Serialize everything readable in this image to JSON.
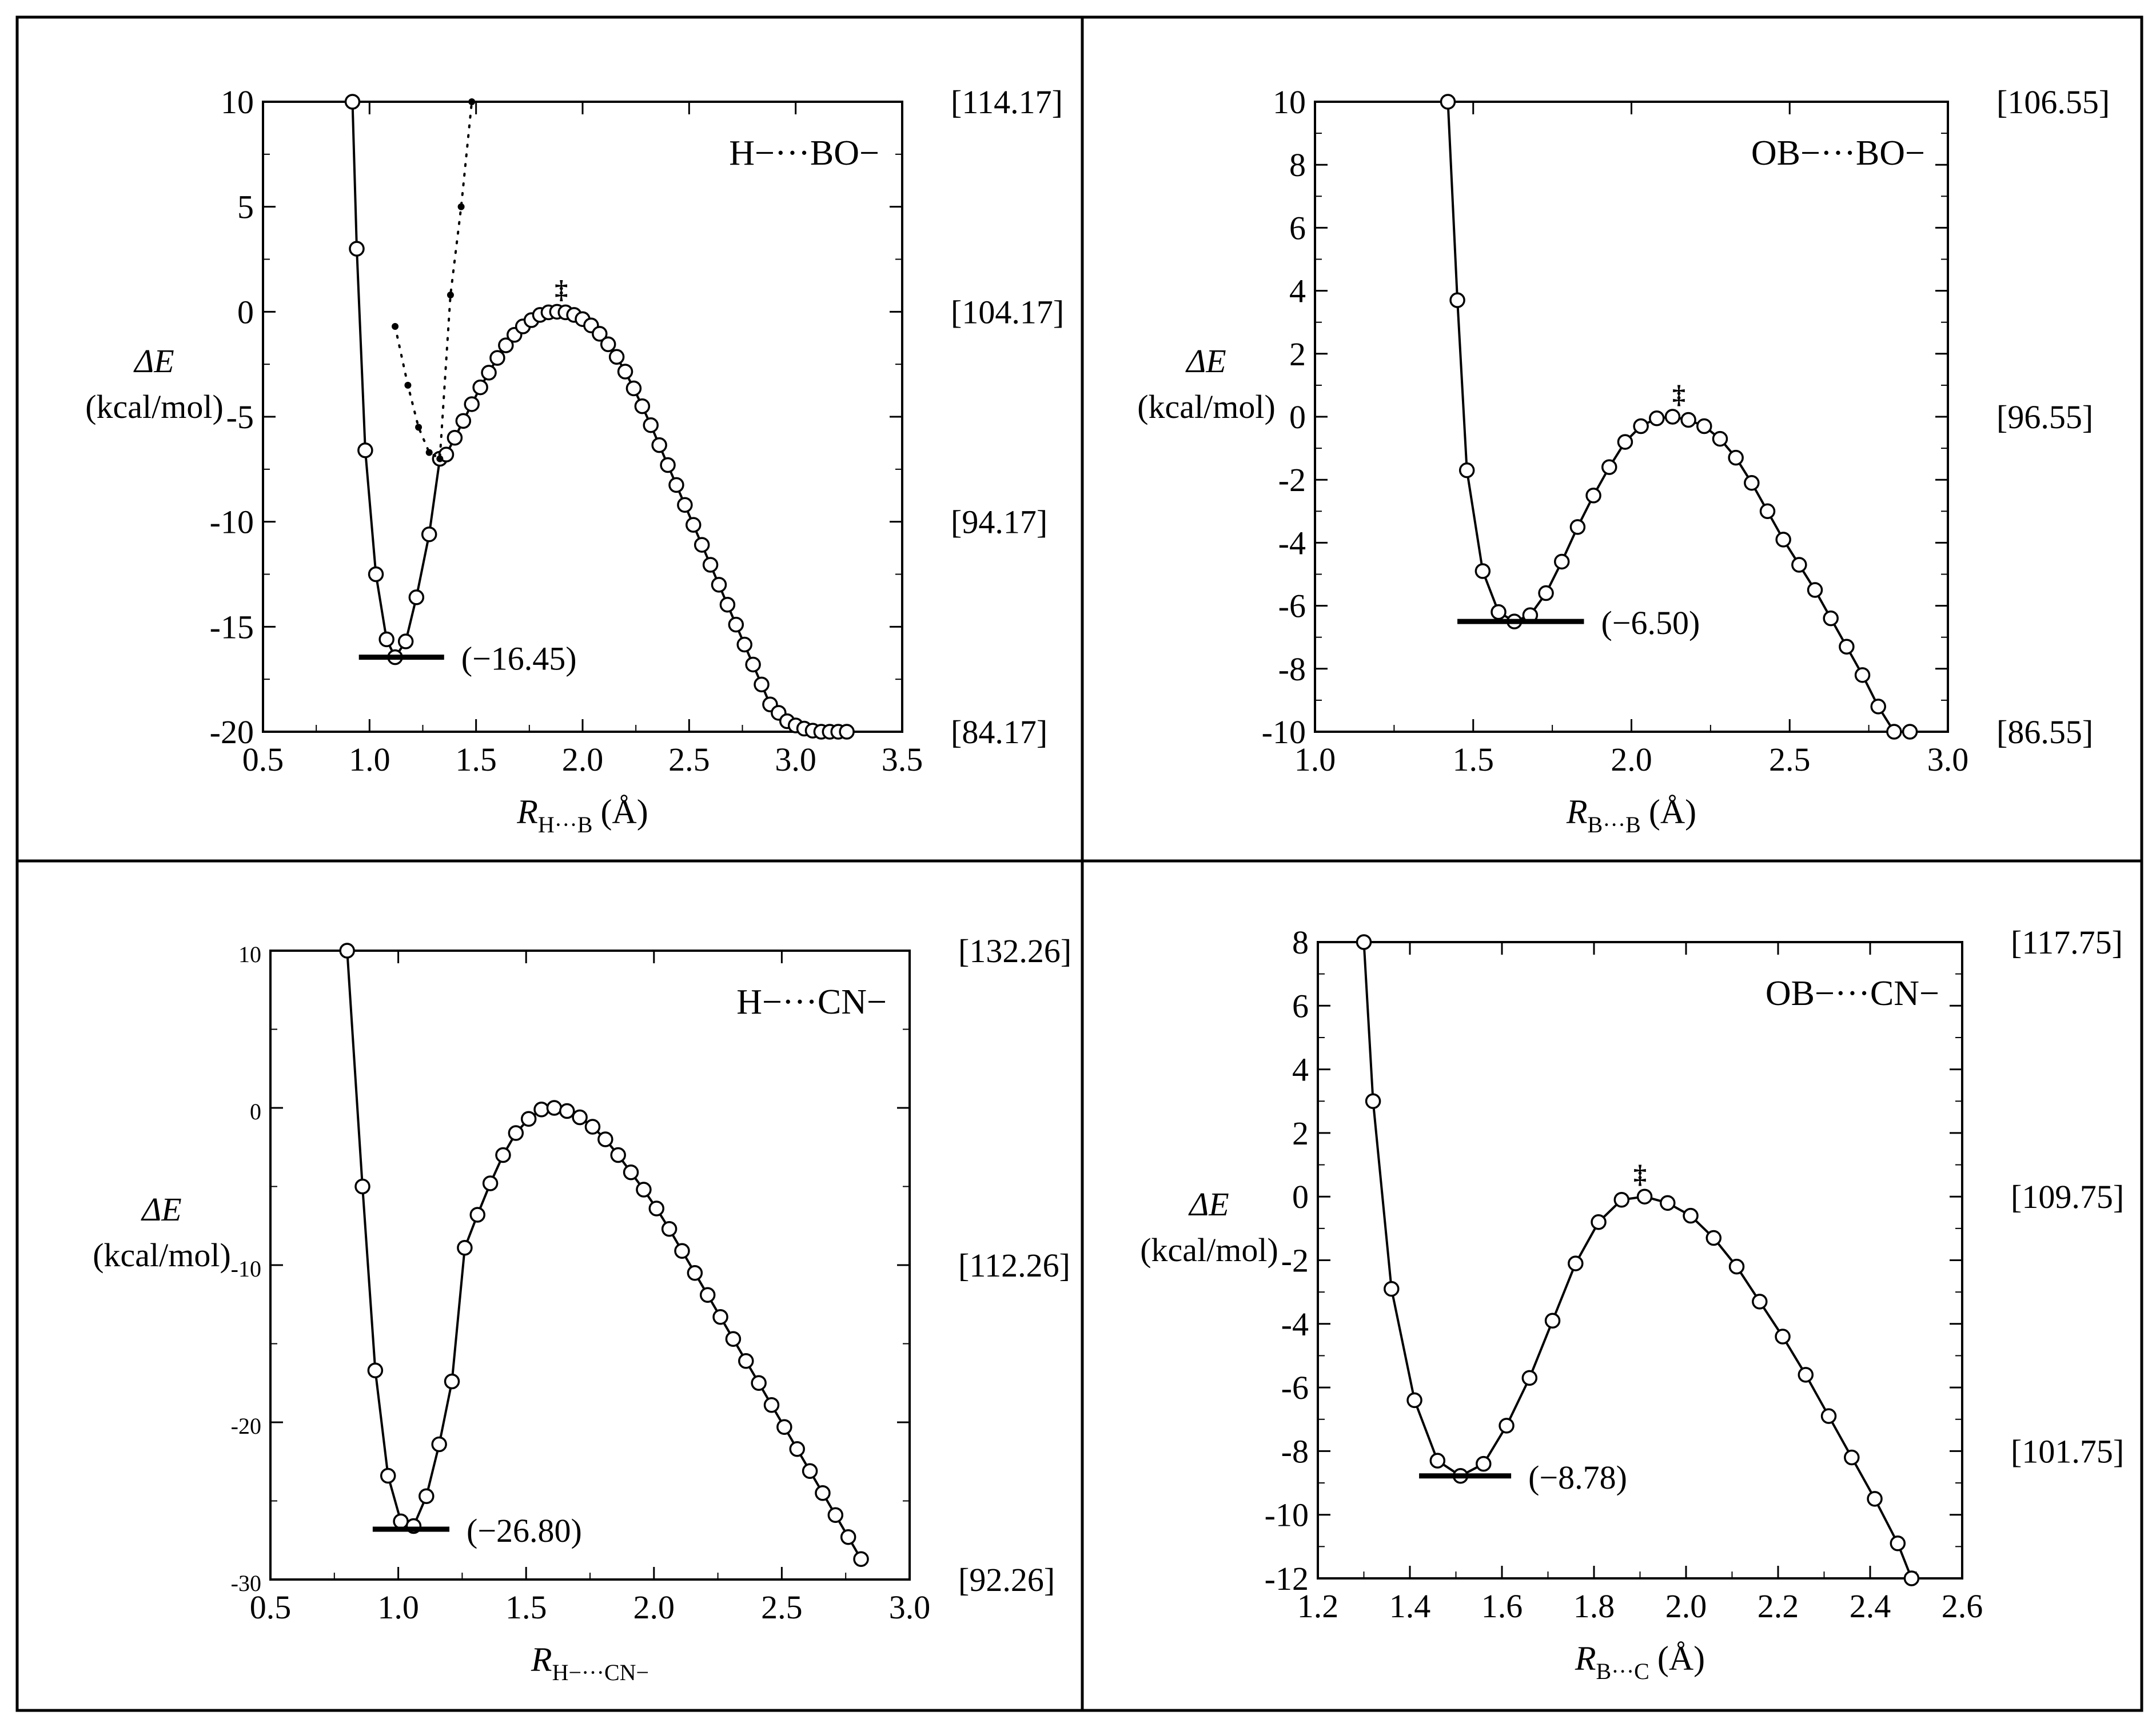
{
  "chart_data": [
    {
      "type": "line",
      "title": "H−···BO−",
      "xlabel_main": "R",
      "xlabel_sub": "H···B",
      "xlabel_unit": "(Å)",
      "ylabel_line1": "ΔE",
      "ylabel_line2": "(kcal/mol)",
      "xlim": [
        0.5,
        3.5
      ],
      "ylim": [
        -20,
        10
      ],
      "xticks": [
        0.5,
        1.0,
        1.5,
        2.0,
        2.5,
        3.0,
        3.5
      ],
      "xtick_labels": [
        "0.5",
        "1.0",
        "1.5",
        "2.0",
        "2.5",
        "3.0",
        "3.5"
      ],
      "yticks": [
        -20,
        -15,
        -10,
        -5,
        0,
        5,
        10
      ],
      "ytick_labels": [
        "-20",
        "-15",
        "-10",
        "-5",
        "0",
        "5",
        "10"
      ],
      "right_labels": [
        {
          "y": 10,
          "text": "[114.17]"
        },
        {
          "y": 0,
          "text": "[104.17]"
        },
        {
          "y": -10,
          "text": "[94.17]"
        },
        {
          "y": -20,
          "text": "[84.17]"
        }
      ],
      "minimum": {
        "x": 1.12,
        "y": -16.45,
        "label": "(−16.45)",
        "bar_x": [
          0.95,
          1.35
        ]
      },
      "ts": {
        "x": 1.9,
        "y": 0,
        "marker": "‡"
      },
      "series": [
        {
          "name": "solid",
          "style": "solid-circles",
          "x": [
            0.92,
            0.94,
            0.98,
            1.03,
            1.08,
            1.12,
            1.17,
            1.22,
            1.28,
            1.33,
            1.36,
            1.4,
            1.44,
            1.48,
            1.52,
            1.56,
            1.6,
            1.64,
            1.68,
            1.72,
            1.76,
            1.8,
            1.84,
            1.88,
            1.92,
            1.96,
            2.0,
            2.04,
            2.08,
            2.12,
            2.16,
            2.2,
            2.24,
            2.28,
            2.32,
            2.36,
            2.4,
            2.44,
            2.48,
            2.52,
            2.56,
            2.6,
            2.64,
            2.68,
            2.72,
            2.76,
            2.8,
            2.84,
            2.88,
            2.92,
            2.96,
            3.0,
            3.04,
            3.08,
            3.12,
            3.16,
            3.2,
            3.24
          ],
          "y": [
            10,
            3.0,
            -6.6,
            -12.5,
            -15.6,
            -16.45,
            -15.7,
            -13.6,
            -10.6,
            -7.0,
            -6.8,
            -6.0,
            -5.2,
            -4.4,
            -3.6,
            -2.9,
            -2.2,
            -1.6,
            -1.1,
            -0.7,
            -0.4,
            -0.15,
            -0.03,
            0,
            -0.03,
            -0.15,
            -0.35,
            -0.65,
            -1.05,
            -1.55,
            -2.15,
            -2.85,
            -3.65,
            -4.5,
            -5.4,
            -6.35,
            -7.3,
            -8.25,
            -9.2,
            -10.15,
            -11.1,
            -12.05,
            -13.0,
            -13.95,
            -14.9,
            -15.85,
            -16.8,
            -17.75,
            -18.7,
            -19.1,
            -19.5,
            -19.7,
            -19.85,
            -19.95,
            -20,
            -20,
            -20,
            -20
          ]
        },
        {
          "name": "dotted",
          "style": "dotted-dots",
          "x": [
            1.12,
            1.18,
            1.23,
            1.28,
            1.33,
            1.38,
            1.43,
            1.48
          ],
          "y": [
            -0.7,
            -3.5,
            -5.5,
            -6.7,
            -7.0,
            0.8,
            5.0,
            10
          ]
        }
      ]
    },
    {
      "type": "line",
      "title": "OB−···BO−",
      "xlabel_main": "R",
      "xlabel_sub": "B···B",
      "xlabel_unit": "(Å)",
      "ylabel_line1": "ΔE",
      "ylabel_line2": "(kcal/mol)",
      "xlim": [
        1.0,
        3.0
      ],
      "ylim": [
        -10,
        10
      ],
      "xticks": [
        1.0,
        1.5,
        2.0,
        2.5,
        3.0
      ],
      "xtick_labels": [
        "1.0",
        "1.5",
        "2.0",
        "2.5",
        "3.0"
      ],
      "yticks": [
        -10,
        -8,
        -6,
        -4,
        -2,
        0,
        2,
        4,
        6,
        8,
        10
      ],
      "ytick_labels": [
        "-10",
        "-8",
        "-6",
        "-4",
        "-2",
        "0",
        "2",
        "4",
        "6",
        "8",
        "10"
      ],
      "right_labels": [
        {
          "y": 10,
          "text": "[106.55]"
        },
        {
          "y": 0,
          "text": "[96.55]"
        },
        {
          "y": -10,
          "text": "[86.55]"
        }
      ],
      "minimum": {
        "x": 1.63,
        "y": -6.5,
        "label": "(−6.50)",
        "bar_x": [
          1.45,
          1.85
        ]
      },
      "ts": {
        "x": 2.15,
        "y": 0,
        "marker": "‡"
      },
      "series": [
        {
          "name": "solid",
          "style": "solid-circles",
          "x": [
            1.42,
            1.45,
            1.48,
            1.53,
            1.58,
            1.63,
            1.68,
            1.73,
            1.78,
            1.83,
            1.88,
            1.93,
            1.98,
            2.03,
            2.08,
            2.13,
            2.18,
            2.23,
            2.28,
            2.33,
            2.38,
            2.43,
            2.48,
            2.53,
            2.58,
            2.63,
            2.68,
            2.73,
            2.78,
            2.83,
            2.88
          ],
          "y": [
            10,
            3.7,
            -1.7,
            -4.9,
            -6.2,
            -6.5,
            -6.3,
            -5.6,
            -4.6,
            -3.5,
            -2.5,
            -1.6,
            -0.8,
            -0.3,
            -0.05,
            0,
            -0.1,
            -0.3,
            -0.7,
            -1.3,
            -2.1,
            -3.0,
            -3.9,
            -4.7,
            -5.5,
            -6.4,
            -7.3,
            -8.2,
            -9.2,
            -10,
            -10
          ]
        }
      ]
    },
    {
      "type": "line",
      "title": "H−···CN−",
      "xlabel_main": "R",
      "xlabel_sub": "H−···CN−",
      "xlabel_unit": "",
      "ylabel_line1": "ΔE",
      "ylabel_line2": "(kcal/mol)",
      "xlim": [
        0.5,
        3.0
      ],
      "ylim": [
        -30,
        10
      ],
      "xticks": [
        0.5,
        1.0,
        1.5,
        2.0,
        2.5,
        3.0
      ],
      "xtick_labels": [
        "0.5",
        "1.0",
        "1.5",
        "2.0",
        "2.5",
        "3.0"
      ],
      "yticks": [
        -30,
        -20,
        -10,
        0,
        10
      ],
      "ytick_labels": [
        "-30",
        "-20",
        "-10",
        "0",
        "10"
      ],
      "right_labels": [
        {
          "y": 10,
          "text": "[132.26]"
        },
        {
          "y": -10,
          "text": "[112.26]"
        },
        {
          "y": -30,
          "text": "[92.26]"
        }
      ],
      "minimum": {
        "x": 1.05,
        "y": -26.8,
        "label": "(−26.80)",
        "bar_x": [
          0.9,
          1.2
        ]
      },
      "ts": {
        "x": 1.62,
        "y": 0,
        "marker": ""
      },
      "series": [
        {
          "name": "solid",
          "style": "solid-circles",
          "x": [
            0.8,
            0.86,
            0.91,
            0.96,
            1.01,
            1.06,
            1.11,
            1.16,
            1.21,
            1.26,
            1.31,
            1.36,
            1.41,
            1.46,
            1.51,
            1.56,
            1.61,
            1.66,
            1.71,
            1.76,
            1.81,
            1.86,
            1.91,
            1.96,
            2.01,
            2.06,
            2.11,
            2.16,
            2.21,
            2.26,
            2.31,
            2.36,
            2.41,
            2.46,
            2.51,
            2.56,
            2.61,
            2.66,
            2.71,
            2.76,
            2.81
          ],
          "y": [
            10,
            -5.0,
            -16.7,
            -23.4,
            -26.3,
            -26.6,
            -24.7,
            -21.4,
            -17.4,
            -8.9,
            -6.8,
            -4.8,
            -3.0,
            -1.6,
            -0.7,
            -0.1,
            0,
            -0.2,
            -0.6,
            -1.2,
            -2.0,
            -3.0,
            -4.1,
            -5.2,
            -6.4,
            -7.7,
            -9.1,
            -10.5,
            -11.9,
            -13.3,
            -14.7,
            -16.1,
            -17.5,
            -18.9,
            -20.3,
            -21.7,
            -23.1,
            -24.5,
            -25.9,
            -27.3,
            -28.7
          ]
        }
      ]
    },
    {
      "type": "line",
      "title": "OB−···CN−",
      "xlabel_main": "R",
      "xlabel_sub": "B···C",
      "xlabel_unit": "(Å)",
      "ylabel_line1": "ΔE",
      "ylabel_line2": "(kcal/mol)",
      "xlim": [
        1.2,
        2.6
      ],
      "ylim": [
        -12,
        8
      ],
      "xticks": [
        1.2,
        1.4,
        1.6,
        1.8,
        2.0,
        2.2,
        2.4,
        2.6
      ],
      "xtick_labels": [
        "1.2",
        "1.4",
        "1.6",
        "1.8",
        "2.0",
        "2.2",
        "2.4",
        "2.6"
      ],
      "yticks": [
        -12,
        -10,
        -8,
        -6,
        -4,
        -2,
        0,
        2,
        4,
        6,
        8
      ],
      "ytick_labels": [
        "-12",
        "-10",
        "-8",
        "-6",
        "-4",
        "-2",
        "0",
        "2",
        "4",
        "6",
        "8"
      ],
      "right_labels": [
        {
          "y": 8,
          "text": "[117.75]"
        },
        {
          "y": 0,
          "text": "[109.75]"
        },
        {
          "y": -8,
          "text": "[101.75]"
        }
      ],
      "minimum": {
        "x": 1.51,
        "y": -8.78,
        "label": "(−8.78)",
        "bar_x": [
          1.42,
          1.62
        ]
      },
      "ts": {
        "x": 1.9,
        "y": 0,
        "marker": "‡"
      },
      "series": [
        {
          "name": "solid",
          "style": "solid-circles",
          "x": [
            1.3,
            1.32,
            1.36,
            1.41,
            1.46,
            1.51,
            1.56,
            1.61,
            1.66,
            1.71,
            1.76,
            1.81,
            1.86,
            1.91,
            1.96,
            2.01,
            2.06,
            2.11,
            2.16,
            2.21,
            2.26,
            2.31,
            2.36,
            2.41,
            2.46,
            2.49
          ],
          "y": [
            8,
            3.0,
            -2.9,
            -6.4,
            -8.3,
            -8.78,
            -8.4,
            -7.2,
            -5.7,
            -3.9,
            -2.1,
            -0.8,
            -0.1,
            0,
            -0.2,
            -0.6,
            -1.3,
            -2.2,
            -3.3,
            -4.4,
            -5.6,
            -6.9,
            -8.2,
            -9.5,
            -10.9,
            -12
          ]
        }
      ]
    }
  ]
}
